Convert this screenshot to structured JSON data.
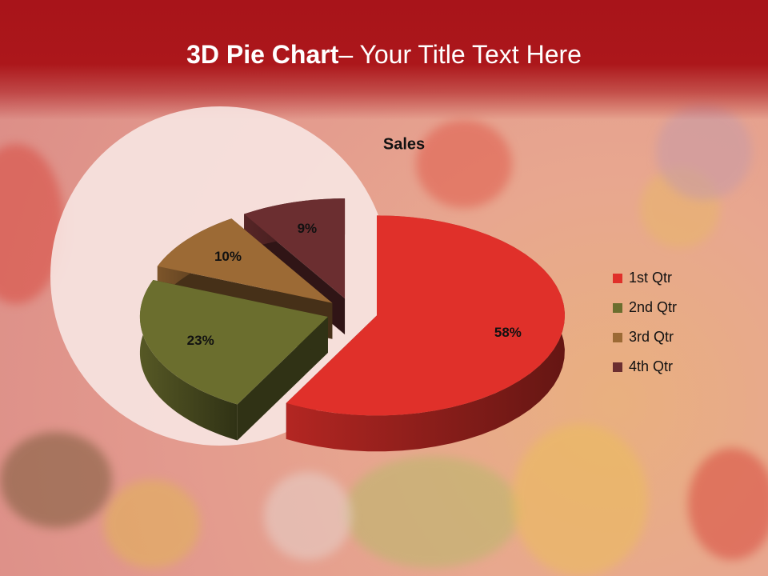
{
  "header": {
    "title": "3D Pie Chart",
    "subtitle": "– Your Title Text Here"
  },
  "chart_data": {
    "type": "pie",
    "title": "Sales",
    "categories": [
      "1st Qtr",
      "2nd Qtr",
      "3rd Qtr",
      "4th Qtr"
    ],
    "values": [
      58,
      23,
      10,
      9
    ],
    "value_labels": [
      "58%",
      "23%",
      "10%",
      "9%"
    ],
    "colors": [
      "#e0302a",
      "#6b6e2e",
      "#9c6a35",
      "#6b2e30"
    ],
    "legend": "right"
  }
}
